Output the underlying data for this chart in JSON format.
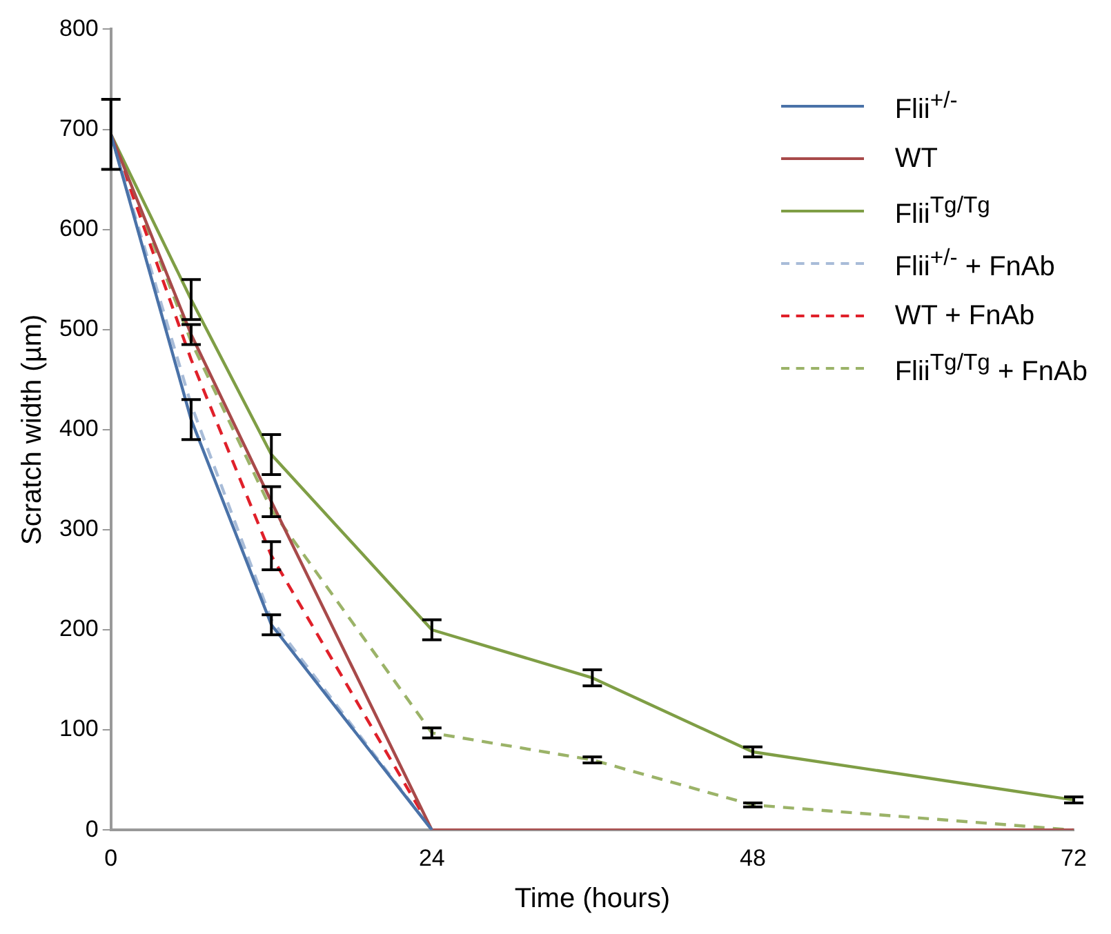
{
  "chart_data": {
    "type": "line",
    "xlabel": "Time (hours)",
    "ylabel": "Scratch width (µm)",
    "x": [
      0,
      6,
      12,
      24,
      36,
      48,
      72
    ],
    "xlim": [
      0,
      72
    ],
    "xticks": [
      0,
      24,
      48,
      72
    ],
    "ylim": [
      0,
      800
    ],
    "yticks": [
      0,
      100,
      200,
      300,
      400,
      500,
      600,
      700,
      800
    ],
    "grid": false,
    "legend": "top right",
    "marker": "none",
    "series": [
      {
        "name": "Flii$^{+/-}$",
        "color": "#4a72a8",
        "line_style": "solid",
        "values": [
          695,
          410,
          205,
          0,
          null,
          null,
          null
        ],
        "errors": [
          35,
          20,
          10,
          null,
          null,
          null,
          null
        ]
      },
      {
        "name": "WT",
        "color": "#a84a4a",
        "line_style": "solid",
        "values": [
          695,
          495,
          328,
          0,
          0,
          0,
          0
        ],
        "errors": [
          null,
          10,
          15,
          null,
          null,
          null,
          null
        ]
      },
      {
        "name": "Flii$^{Tg/Tg}$",
        "color": "#7f9e45",
        "line_style": "solid",
        "values": [
          695,
          530,
          375,
          200,
          152,
          78,
          30
        ],
        "errors": [
          null,
          20,
          20,
          10,
          8,
          5,
          3
        ]
      },
      {
        "name": "Flii$^{+/-}$ + FnAb",
        "color": "#a8bcd8",
        "line_style": "dashed",
        "values": [
          695,
          425,
          210,
          0,
          null,
          null,
          null
        ]
      },
      {
        "name": "WT + FnAb",
        "color": "#e0202a",
        "line_style": "dashed",
        "values": [
          695,
          470,
          274,
          0,
          null,
          null,
          null
        ],
        "errors": [
          null,
          null,
          14,
          null,
          null,
          null,
          null
        ]
      },
      {
        "name": "Flii$^{Tg/Tg}$ + FnAb",
        "color": "#9bb368",
        "line_style": "dashed",
        "values": [
          695,
          488,
          320,
          97,
          70,
          25,
          0
        ],
        "errors": [
          null,
          null,
          null,
          5,
          3,
          2,
          null
        ]
      }
    ]
  }
}
